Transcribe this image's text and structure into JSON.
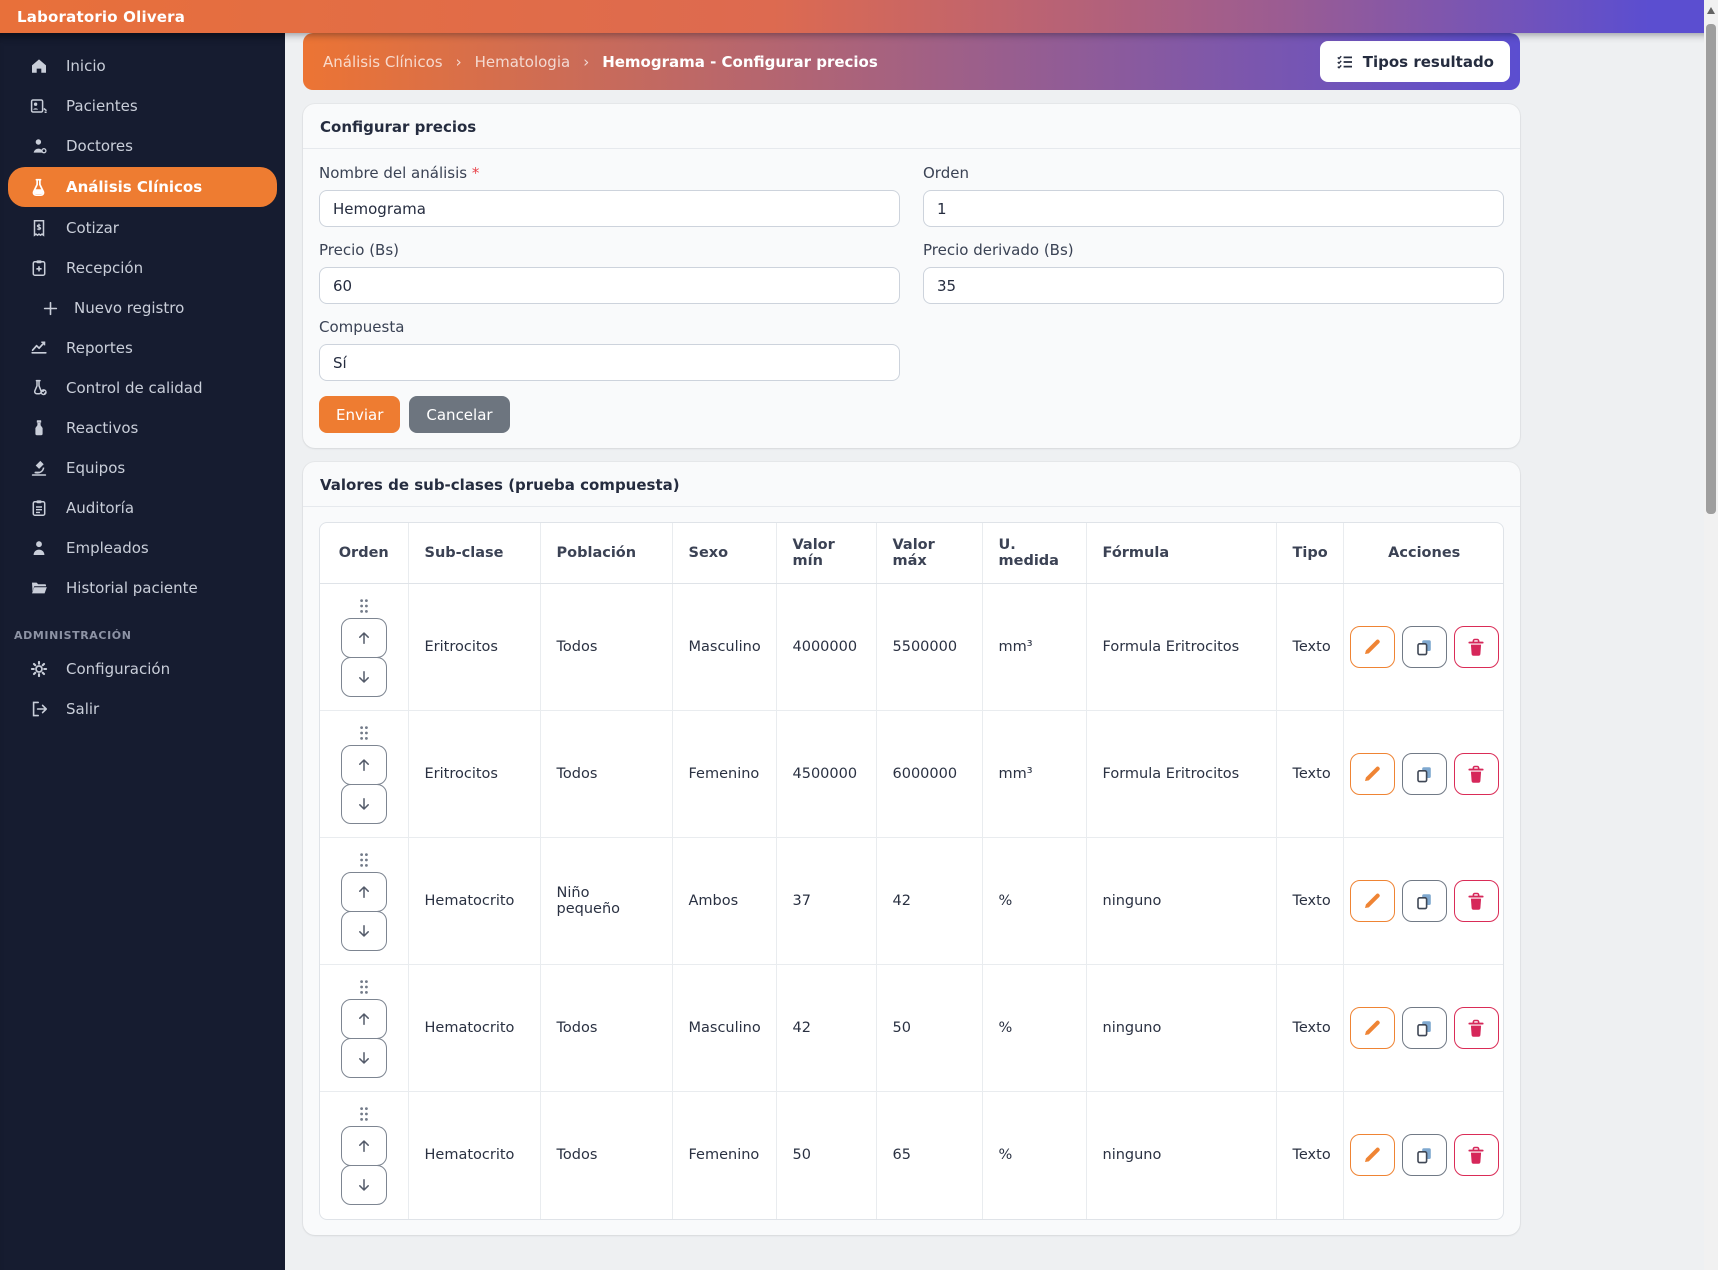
{
  "app": {
    "brand": "Laboratorio Olivera"
  },
  "colors": {
    "accent_orange": "#ee7c31",
    "gradient_purple": "#5b4ed0",
    "sidebar_bg": "#161c30",
    "danger_red": "#da2c57",
    "gray_button": "#6d757f"
  },
  "sidebar": {
    "items": [
      {
        "id": "inicio",
        "label": "Inicio",
        "icon": "home"
      },
      {
        "id": "pacientes",
        "label": "Pacientes",
        "icon": "patients"
      },
      {
        "id": "doctores",
        "label": "Doctores",
        "icon": "doctor"
      },
      {
        "id": "analisis-clinicos",
        "label": "Análisis Clínicos",
        "icon": "flask",
        "active": true
      },
      {
        "id": "cotizar",
        "label": "Cotizar",
        "icon": "quote"
      },
      {
        "id": "recepcion",
        "label": "Recepción",
        "icon": "reception"
      },
      {
        "id": "nuevo-registro",
        "label": "Nuevo registro",
        "icon": "plus",
        "sub": true
      },
      {
        "id": "reportes",
        "label": "Reportes",
        "icon": "chart"
      },
      {
        "id": "control-de-calidad",
        "label": "Control de calidad",
        "icon": "quality"
      },
      {
        "id": "reactivos",
        "label": "Reactivos",
        "icon": "reagent"
      },
      {
        "id": "equipos",
        "label": "Equipos",
        "icon": "microscope"
      },
      {
        "id": "auditoria",
        "label": "Auditoría",
        "icon": "audit"
      },
      {
        "id": "empleados",
        "label": "Empleados",
        "icon": "employee"
      },
      {
        "id": "historial-paciente",
        "label": "Historial paciente",
        "icon": "folder"
      }
    ],
    "section_label": "ADMINISTRACIÓN",
    "admin_items": [
      {
        "id": "configuracion",
        "label": "Configuración",
        "icon": "gear"
      },
      {
        "id": "salir",
        "label": "Salir",
        "icon": "logout"
      }
    ]
  },
  "breadcrumb": {
    "separator": "›",
    "items": [
      "Análisis Clínicos",
      "Hematologia",
      "Hemograma - Configurar precios"
    ]
  },
  "actions_bar": {
    "tipos_resultado_label": "Tipos resultado"
  },
  "form_card": {
    "title": "Configurar precios",
    "fields": {
      "nombre": {
        "label": "Nombre del análisis",
        "required_mark": "*",
        "value": "Hemograma"
      },
      "orden": {
        "label": "Orden",
        "value": "1"
      },
      "precio": {
        "label": "Precio (Bs)",
        "value": "60"
      },
      "precio_derivado": {
        "label": "Precio derivado (Bs)",
        "value": "35"
      },
      "compuesta": {
        "label": "Compuesta",
        "value": "Sí"
      }
    },
    "submit_label": "Enviar",
    "cancel_label": "Cancelar"
  },
  "table_card": {
    "title": "Valores de sub-clases (prueba compuesta)",
    "columns": [
      "Orden",
      "Sub-clase",
      "Población",
      "Sexo",
      "Valor mín",
      "Valor máx",
      "U. medida",
      "Fórmula",
      "Tipo",
      "Acciones"
    ],
    "rows": [
      {
        "sub_clase": "Eritrocitos",
        "poblacion": "Todos",
        "sexo": "Masculino",
        "valor_min": "4000000",
        "valor_max": "5500000",
        "u_medida": "mm³",
        "formula": "Formula Eritrocitos",
        "tipo": "Texto"
      },
      {
        "sub_clase": "Eritrocitos",
        "poblacion": "Todos",
        "sexo": "Femenino",
        "valor_min": "4500000",
        "valor_max": "6000000",
        "u_medida": "mm³",
        "formula": "Formula Eritrocitos",
        "tipo": "Texto"
      },
      {
        "sub_clase": "Hematocrito",
        "poblacion": "Niño pequeño",
        "sexo": "Ambos",
        "valor_min": "37",
        "valor_max": "42",
        "u_medida": "%",
        "formula": "ninguno",
        "tipo": "Texto"
      },
      {
        "sub_clase": "Hematocrito",
        "poblacion": "Todos",
        "sexo": "Masculino",
        "valor_min": "42",
        "valor_max": "50",
        "u_medida": "%",
        "formula": "ninguno",
        "tipo": "Texto"
      },
      {
        "sub_clase": "Hematocrito",
        "poblacion": "Todos",
        "sexo": "Femenino",
        "valor_min": "50",
        "valor_max": "65",
        "u_medida": "%",
        "formula": "ninguno",
        "tipo": "Texto"
      }
    ]
  }
}
